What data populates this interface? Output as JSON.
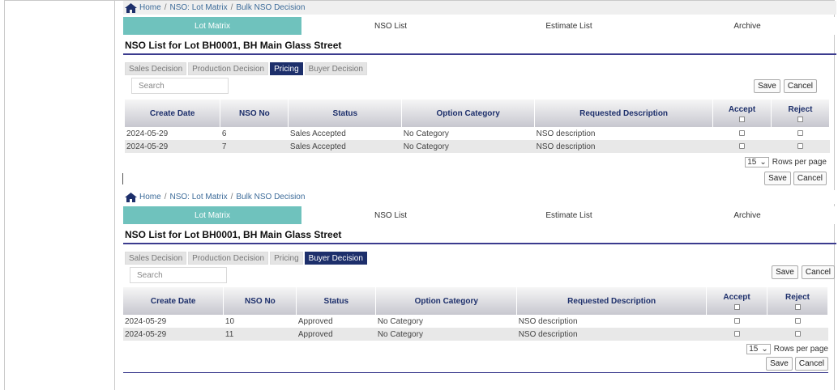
{
  "panels": [
    {
      "breadcrumb": [
        "Home",
        "NSO: Lot Matrix",
        "Bulk NSO Decision"
      ],
      "nav_tabs": [
        {
          "label": "Lot Matrix",
          "active": true
        },
        {
          "label": "NSO List",
          "active": false
        },
        {
          "label": "Estimate List",
          "active": false
        },
        {
          "label": "Archive",
          "active": false
        }
      ],
      "title": "NSO List for Lot BH0001, BH Main Glass Street",
      "sub_tabs": [
        {
          "label": "Sales Decision",
          "active": false
        },
        {
          "label": "Production Decision",
          "active": false
        },
        {
          "label": "Pricing",
          "active": true
        },
        {
          "label": "Buyer Decision",
          "active": false
        }
      ],
      "search_placeholder": "Search",
      "save_label": "Save",
      "cancel_label": "Cancel",
      "columns": [
        "Create Date",
        "NSO No",
        "Status",
        "Option Category",
        "Requested Description",
        "Accept",
        "Reject"
      ],
      "rows": [
        [
          "2024-05-29",
          "6",
          "Sales Accepted",
          "No Category",
          "NSO description"
        ],
        [
          "2024-05-29",
          "7",
          "Sales Accepted",
          "No Category",
          "NSO description"
        ]
      ],
      "rows_per_page_value": "15",
      "rows_per_page_label": "Rows per page"
    },
    {
      "breadcrumb": [
        "Home",
        "NSO: Lot Matrix",
        "Bulk NSO Decision"
      ],
      "nav_tabs": [
        {
          "label": "Lot Matrix",
          "active": true
        },
        {
          "label": "NSO List",
          "active": false
        },
        {
          "label": "Estimate List",
          "active": false
        },
        {
          "label": "Archive",
          "active": false
        }
      ],
      "title": "NSO List for Lot BH0001, BH Main Glass Street",
      "sub_tabs": [
        {
          "label": "Sales Decision",
          "active": false
        },
        {
          "label": "Production Decision",
          "active": false
        },
        {
          "label": "Pricing",
          "active": false
        },
        {
          "label": "Buyer Decision",
          "active": true
        }
      ],
      "search_placeholder": "Search",
      "save_label": "Save",
      "cancel_label": "Cancel",
      "columns": [
        "Create Date",
        "NSO No",
        "Status",
        "Option Category",
        "Requested Description",
        "Accept",
        "Reject"
      ],
      "rows": [
        [
          "2024-05-29",
          "10",
          "Approved",
          "No Category",
          "NSO description"
        ],
        [
          "2024-05-29",
          "11",
          "Approved",
          "No Category",
          "NSO description"
        ]
      ],
      "rows_per_page_value": "15",
      "rows_per_page_label": "Rows per page"
    }
  ],
  "colors": {
    "nav_active": "#6fc2bd",
    "subtab_active": "#1d2f6b",
    "title_rule": "#3b3b8e",
    "header_text": "#1d2f6b"
  }
}
